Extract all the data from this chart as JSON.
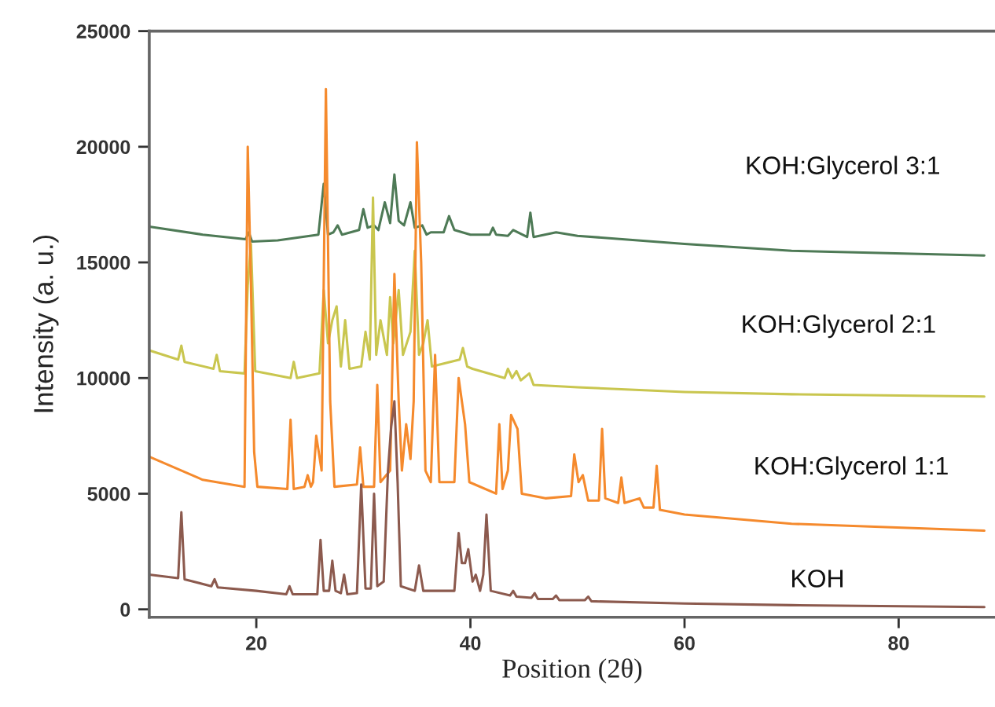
{
  "chart_data": {
    "type": "line",
    "xlabel": "Position (2θ)",
    "ylabel": "Intensity (a. u.)",
    "xlim": [
      10,
      89
    ],
    "ylim": [
      -340,
      25000
    ],
    "xticks": [
      20,
      40,
      60,
      80
    ],
    "yticks": [
      0,
      5000,
      10000,
      15000,
      20000,
      25000
    ],
    "grid": false,
    "legend": false,
    "series": [
      {
        "name": "KOH:Glycerol 3:1",
        "color": "#4e7a56",
        "x": [
          10,
          15,
          19,
          19.3,
          19.6,
          22,
          25.8,
          26.3,
          26.7,
          27.2,
          27.6,
          28,
          29.6,
          30,
          30.4,
          31,
          31.4,
          32,
          32.5,
          32.9,
          33.3,
          33.8,
          34.4,
          34.8,
          35.5,
          35.9,
          36.3,
          37.5,
          38,
          38.5,
          40,
          41.8,
          42.1,
          42.4,
          43.5,
          44,
          45.3,
          45.6,
          45.9,
          48,
          50,
          60,
          70,
          88
        ],
        "values": [
          16550,
          16200,
          16000,
          16300,
          15900,
          15950,
          16200,
          18400,
          16200,
          16300,
          16600,
          16200,
          16400,
          17300,
          16500,
          16600,
          16400,
          17600,
          16700,
          18800,
          16800,
          16600,
          17600,
          16500,
          16600,
          16200,
          16300,
          16300,
          17000,
          16400,
          16200,
          16200,
          16500,
          16200,
          16150,
          16400,
          16100,
          17150,
          16100,
          16300,
          16150,
          15800,
          15500,
          15300
        ]
      },
      {
        "name": "KOH:Glycerol 2:1",
        "color": "#c9c64f",
        "x": [
          10,
          12.7,
          13,
          13.3,
          16,
          16.3,
          16.6,
          18.9,
          19.2,
          19.5,
          19.9,
          23.2,
          23.5,
          23.8,
          25.9,
          26.3,
          26.7,
          27.1,
          27.5,
          27.9,
          28.3,
          28.7,
          29.8,
          30.2,
          30.6,
          30.9,
          31.2,
          31.6,
          32.2,
          32.5,
          32.8,
          33.3,
          33.7,
          34.4,
          34.8,
          35.2,
          35.6,
          36,
          36.4,
          39,
          39.3,
          39.7,
          40.2,
          43.2,
          43.5,
          43.9,
          44.3,
          44.7,
          45.5,
          45.9,
          50,
          60,
          70,
          88
        ],
        "values": [
          11200,
          10800,
          11400,
          10700,
          10400,
          11000,
          10300,
          10200,
          14000,
          15800,
          10300,
          10000,
          10700,
          10000,
          10200,
          13800,
          11500,
          12500,
          13100,
          10500,
          12500,
          10400,
          10500,
          12000,
          10800,
          17800,
          11000,
          12500,
          11000,
          13500,
          11500,
          13800,
          11000,
          12000,
          15500,
          11000,
          11500,
          12500,
          10500,
          10800,
          11300,
          10500,
          10400,
          10000,
          10400,
          10000,
          10300,
          9900,
          10200,
          9700,
          9600,
          9400,
          9300,
          9200
        ]
      },
      {
        "name": "KOH:Glycerol 1:1",
        "color": "#f58a2d",
        "x": [
          10,
          15,
          18.9,
          19.2,
          19.5,
          19.8,
          20.1,
          22.9,
          23.2,
          23.5,
          24.5,
          24.8,
          25.1,
          25.3,
          25.6,
          26.1,
          26.5,
          26.9,
          27.3,
          29.4,
          29.7,
          30,
          31,
          31.3,
          31.6,
          32.5,
          32.9,
          33.3,
          33.6,
          34,
          34.4,
          34.7,
          35,
          35.4,
          35.8,
          36.3,
          36.7,
          37.1,
          38.5,
          38.9,
          39.5,
          39.9,
          42.4,
          42.7,
          43,
          43.5,
          43.8,
          44.4,
          44.8,
          47,
          49.4,
          49.7,
          50.1,
          50.5,
          51,
          52,
          52.3,
          52.6,
          53.8,
          54.1,
          54.4,
          55.8,
          56.2,
          57.1,
          57.4,
          57.7,
          60,
          70,
          88
        ],
        "values": [
          6600,
          5600,
          5300,
          20000,
          14000,
          6800,
          5300,
          5200,
          8200,
          5200,
          5300,
          5800,
          5300,
          5500,
          7500,
          6000,
          22500,
          9000,
          5300,
          5400,
          7000,
          5300,
          5300,
          9700,
          5500,
          6000,
          14500,
          9000,
          6000,
          8000,
          6500,
          9000,
          20200,
          15000,
          6000,
          5500,
          11000,
          5500,
          5500,
          10000,
          8000,
          5500,
          5000,
          8000,
          5200,
          6000,
          8400,
          7800,
          5000,
          4800,
          4900,
          6700,
          5500,
          5800,
          4700,
          4700,
          7800,
          4800,
          4600,
          5700,
          4600,
          4800,
          4400,
          4400,
          6200,
          4300,
          4100,
          3700,
          3400
        ]
      },
      {
        "name": "KOH",
        "color": "#8c5a4e",
        "x": [
          10,
          12.7,
          13,
          13.3,
          15.8,
          16.1,
          16.4,
          20,
          22.8,
          23.1,
          23.4,
          25.7,
          26,
          26.3,
          26.8,
          27.1,
          27.4,
          27.9,
          28.2,
          28.5,
          29.4,
          29.8,
          30.2,
          30.7,
          31,
          31.3,
          31.9,
          32.3,
          32.6,
          32.9,
          33.2,
          33.5,
          34.8,
          35.2,
          35.6,
          38.5,
          38.9,
          39.2,
          39.5,
          39.8,
          40.2,
          40.5,
          40.9,
          41.2,
          41.5,
          41.9,
          43.7,
          44,
          44.3,
          45.7,
          46,
          46.3,
          47.7,
          48,
          48.3,
          50.7,
          51,
          51.3,
          60,
          70,
          88
        ],
        "values": [
          1500,
          1350,
          4200,
          1300,
          1000,
          1300,
          950,
          800,
          650,
          1000,
          650,
          650,
          3000,
          800,
          800,
          2100,
          800,
          700,
          1500,
          650,
          700,
          5400,
          900,
          900,
          5000,
          1000,
          1200,
          6000,
          7900,
          9000,
          5500,
          1000,
          800,
          1900,
          800,
          800,
          3300,
          2000,
          2000,
          2600,
          1200,
          1500,
          800,
          1500,
          4100,
          800,
          600,
          800,
          550,
          500,
          700,
          450,
          450,
          600,
          400,
          400,
          550,
          350,
          250,
          180,
          100
        ]
      }
    ]
  }
}
